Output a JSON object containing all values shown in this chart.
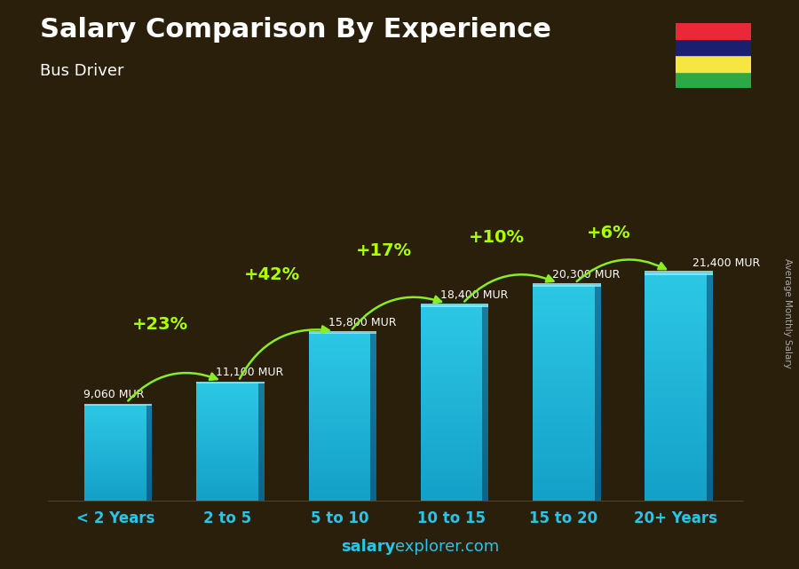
{
  "title": "Salary Comparison By Experience",
  "subtitle": "Bus Driver",
  "categories": [
    "< 2 Years",
    "2 to 5",
    "5 to 10",
    "10 to 15",
    "15 to 20",
    "20+ Years"
  ],
  "values": [
    9060,
    11100,
    15800,
    18400,
    20300,
    21400
  ],
  "labels": [
    "9,060 MUR",
    "11,100 MUR",
    "15,800 MUR",
    "18,400 MUR",
    "20,300 MUR",
    "21,400 MUR"
  ],
  "pct_labels": [
    "+23%",
    "+42%",
    "+17%",
    "+10%",
    "+6%"
  ],
  "bar_color_main": "#29C4E8",
  "bar_color_dark": "#1580AA",
  "bar_top_color": "#55DDFF",
  "bg_color": "#2a1f0a",
  "ylabel": "Average Monthly Salary",
  "watermark_bold": "salary",
  "watermark_normal": "explorer.com",
  "watermark_color": "#29C4E8",
  "flag_colors": [
    "#EA2839",
    "#1A206E",
    "#F5E642",
    "#2CA846"
  ],
  "arrow_color": "#88EE22",
  "pct_color": "#AAFF00",
  "label_color": "#FFFFFF",
  "title_color": "#FFFFFF",
  "subtitle_color": "#FFFFFF",
  "xlabel_color": "#29C4E8",
  "ylabel_rot_color": "#AAAAAA"
}
